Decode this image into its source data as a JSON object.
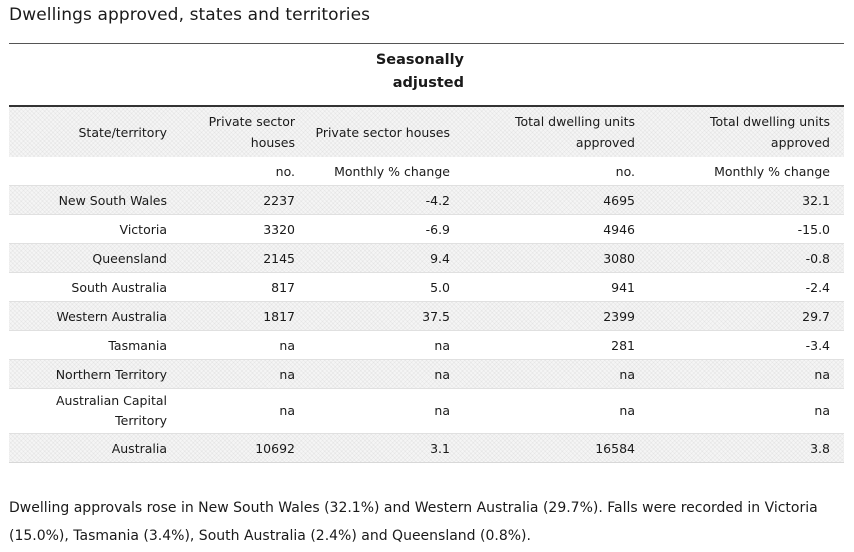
{
  "title": "Dwellings approved, states and territories",
  "table": {
    "seasonal_label": "Seasonally adjusted",
    "headers": [
      "State/territory",
      "Private sector houses",
      "Private sector houses",
      "Total dwelling units approved",
      "Total dwelling units approved"
    ],
    "units": [
      "",
      "no.",
      "Monthly % change",
      "no.",
      "Monthly % change"
    ],
    "rows": [
      {
        "state": "New South Wales",
        "v1": "2237",
        "v2": "-4.2",
        "v3": "4695",
        "v4": "32.1"
      },
      {
        "state": "Victoria",
        "v1": "3320",
        "v2": "-6.9",
        "v3": "4946",
        "v4": "-15.0"
      },
      {
        "state": "Queensland",
        "v1": "2145",
        "v2": "9.4",
        "v3": "3080",
        "v4": "-0.8"
      },
      {
        "state": "South Australia",
        "v1": "817",
        "v2": "5.0",
        "v3": "941",
        "v4": "-2.4"
      },
      {
        "state": "Western Australia",
        "v1": "1817",
        "v2": "37.5",
        "v3": "2399",
        "v4": "29.7"
      },
      {
        "state": "Tasmania",
        "v1": "na",
        "v2": "na",
        "v3": "281",
        "v4": "-3.4"
      },
      {
        "state": "Northern Territory",
        "v1": "na",
        "v2": "na",
        "v3": "na",
        "v4": "na"
      },
      {
        "state": "Australian Capital Territory",
        "v1": "na",
        "v2": "na",
        "v3": "na",
        "v4": "na"
      },
      {
        "state": "Australia",
        "v1": "10692",
        "v2": "3.1",
        "v3": "16584",
        "v4": "3.8"
      }
    ]
  },
  "summary": "Dwelling approvals rose in New South Wales (32.1%) and Western Australia (29.7%). Falls were recorded in Victoria (15.0%), Tasmania (3.4%), South Australia (2.4%) and Queensland (0.8%)."
}
